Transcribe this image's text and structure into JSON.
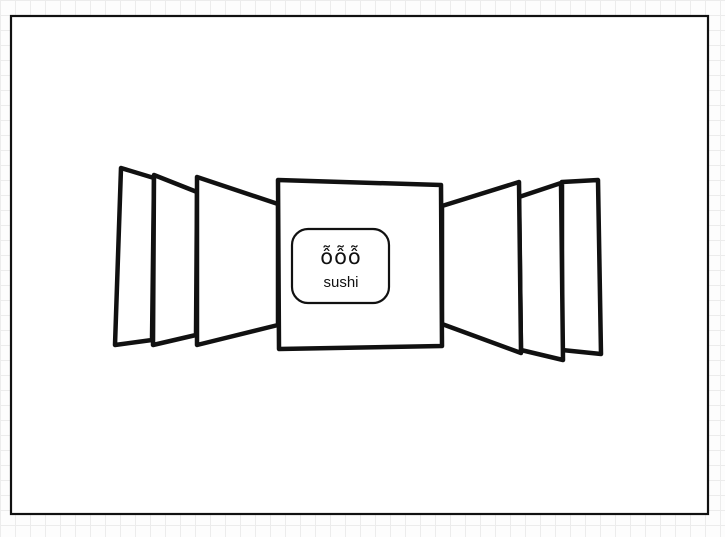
{
  "diagram": {
    "logo": {
      "glyphs": "ỗỗỗ",
      "label": "sushi"
    },
    "colors": {
      "stroke": "#111111",
      "fill": "#ffffff",
      "grid": "#ececec"
    }
  }
}
